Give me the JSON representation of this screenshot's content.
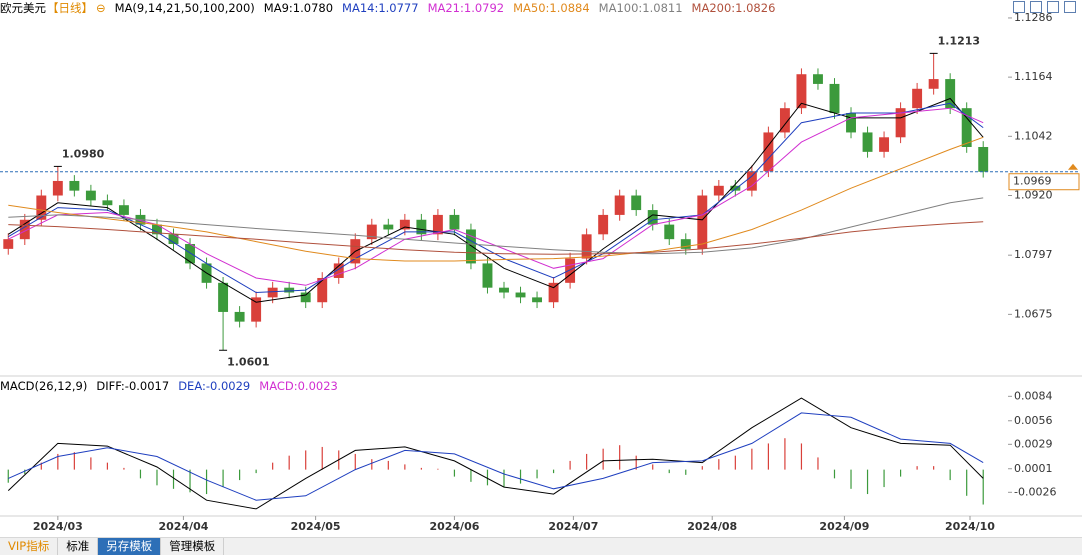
{
  "chart_data": [
    {
      "type": "candlestick",
      "title": "欧元美元",
      "period": "【日线】",
      "indicator": "MA(9,14,21,50,100,200)",
      "xlim": [
        -0.5,
        60.5
      ],
      "xticks": [
        {
          "value": 3,
          "label": "2024/03"
        },
        {
          "value": 10.6,
          "label": "2024/04"
        },
        {
          "value": 18.6,
          "label": "2024/05"
        },
        {
          "value": 27,
          "label": "2024/06"
        },
        {
          "value": 34.2,
          "label": "2024/07"
        },
        {
          "value": 42.6,
          "label": "2024/08"
        },
        {
          "value": 50.6,
          "label": "2024/09"
        },
        {
          "value": 58.2,
          "label": "2024/10"
        }
      ],
      "ylim": [
        1.055,
        1.1323
      ],
      "yticks": [
        1.1286,
        1.1164,
        {
          "value": 1.1042,
          "label": "1.1042"
        },
        {
          "value": 1.092,
          "label": "1.0920"
        },
        1.0797,
        1.0675
      ],
      "up_color": "#d9403a",
      "down_color": "#3c9a3c",
      "open": [
        1.081,
        1.083,
        1.087,
        1.092,
        1.095,
        1.093,
        1.091,
        1.09,
        1.088,
        1.086,
        1.084,
        1.082,
        1.078,
        1.074,
        1.068,
        1.066,
        1.071,
        1.073,
        1.072,
        1.07,
        1.075,
        1.078,
        1.083,
        1.086,
        1.085,
        1.087,
        1.084,
        1.088,
        1.085,
        1.078,
        1.073,
        1.072,
        1.071,
        1.07,
        1.074,
        1.079,
        1.084,
        1.088,
        1.092,
        1.089,
        1.086,
        1.083,
        1.081,
        1.092,
        1.094,
        1.093,
        1.097,
        1.105,
        1.11,
        1.117,
        1.115,
        1.109,
        1.105,
        1.101,
        1.104,
        1.11,
        1.114,
        1.116,
        1.11,
        1.102
      ],
      "high": [
        1.0842,
        1.0882,
        1.0932,
        1.098,
        1.0962,
        1.0942,
        1.0922,
        1.0912,
        1.0892,
        1.0872,
        1.0852,
        1.0832,
        1.0792,
        1.0752,
        1.0692,
        1.0722,
        1.0742,
        1.0742,
        1.0732,
        1.0762,
        1.0792,
        1.0842,
        1.0872,
        1.0872,
        1.0882,
        1.0882,
        1.0892,
        1.0892,
        1.0862,
        1.0792,
        1.0742,
        1.0732,
        1.0722,
        1.0752,
        1.0802,
        1.0852,
        1.0892,
        1.0932,
        1.0932,
        1.0902,
        1.0872,
        1.0842,
        1.0932,
        1.0952,
        1.0952,
        1.0982,
        1.1062,
        1.1112,
        1.1182,
        1.1182,
        1.1162,
        1.1102,
        1.1062,
        1.1052,
        1.1112,
        1.1152,
        1.1213,
        1.1172,
        1.1112,
        1.1032
      ],
      "low": [
        1.0798,
        1.0818,
        1.0858,
        1.0908,
        1.0918,
        1.0898,
        1.0888,
        1.0868,
        1.0848,
        1.0828,
        1.0808,
        1.0768,
        1.0728,
        1.0601,
        1.0648,
        1.0648,
        1.0698,
        1.0708,
        1.0688,
        1.0688,
        1.0738,
        1.0768,
        1.0818,
        1.0838,
        1.0838,
        1.0828,
        1.0828,
        1.0838,
        1.0768,
        1.0718,
        1.0708,
        1.0698,
        1.0688,
        1.0688,
        1.0728,
        1.0778,
        1.0828,
        1.0868,
        1.0878,
        1.0848,
        1.0818,
        1.0798,
        1.0798,
        1.0908,
        1.0918,
        1.0918,
        1.0958,
        1.1038,
        1.1088,
        1.1138,
        1.1078,
        1.1038,
        1.0998,
        1.0998,
        1.1028,
        1.1088,
        1.1128,
        1.1088,
        1.1008,
        1.0957
      ],
      "close": [
        1.083,
        1.087,
        1.092,
        1.095,
        1.093,
        1.091,
        1.09,
        1.088,
        1.086,
        1.084,
        1.082,
        1.078,
        1.074,
        1.068,
        1.066,
        1.071,
        1.073,
        1.072,
        1.07,
        1.075,
        1.078,
        1.083,
        1.086,
        1.085,
        1.087,
        1.084,
        1.088,
        1.085,
        1.078,
        1.073,
        1.072,
        1.071,
        1.07,
        1.074,
        1.079,
        1.084,
        1.088,
        1.092,
        1.089,
        1.086,
        1.083,
        1.081,
        1.092,
        1.094,
        1.093,
        1.097,
        1.105,
        1.11,
        1.117,
        1.115,
        1.109,
        1.105,
        1.101,
        1.104,
        1.11,
        1.114,
        1.116,
        1.11,
        1.102,
        1.0969
      ],
      "ma_x": [
        0,
        3,
        6,
        9,
        12,
        15,
        18,
        21,
        24,
        27,
        30,
        33,
        36,
        39,
        42,
        45,
        48,
        51,
        54,
        57,
        59
      ],
      "series": [
        {
          "name": "MA9:1.0780",
          "color": "#000000",
          "values": [
            1.084,
            1.0905,
            1.0895,
            1.083,
            1.076,
            1.07,
            1.0715,
            1.0805,
            1.0855,
            1.084,
            1.077,
            1.073,
            1.081,
            1.088,
            1.087,
            1.098,
            1.111,
            1.108,
            1.108,
            1.112,
            1.104
          ]
        },
        {
          "name": "MA14:1.0777",
          "color": "#1f3fbf",
          "values": [
            1.0835,
            1.0895,
            1.089,
            1.0845,
            1.078,
            1.072,
            1.0725,
            1.079,
            1.0845,
            1.0845,
            1.079,
            1.075,
            1.08,
            1.087,
            1.088,
            1.096,
            1.107,
            1.109,
            1.109,
            1.111,
            1.106
          ]
        },
        {
          "name": "MA21:1.0792",
          "color": "#d12fd1",
          "values": [
            1.083,
            1.088,
            1.0885,
            1.086,
            1.08,
            1.075,
            1.0735,
            1.077,
            1.083,
            1.085,
            1.081,
            1.077,
            1.079,
            1.086,
            1.088,
            1.094,
            1.103,
            1.108,
            1.109,
            1.11,
            1.107
          ]
        },
        {
          "name": "MA50:1.0884",
          "color": "#e08a1e",
          "values": [
            1.09,
            1.0885,
            1.0872,
            1.086,
            1.0845,
            1.0825,
            1.0805,
            1.079,
            1.0785,
            1.0785,
            1.0788,
            1.079,
            1.0795,
            1.0805,
            1.082,
            1.085,
            1.089,
            1.0935,
            1.0975,
            1.1015,
            1.104
          ]
        },
        {
          "name": "MA100:1.0811",
          "color": "#808080",
          "values": [
            1.0875,
            1.088,
            1.0875,
            1.0868,
            1.086,
            1.0852,
            1.0845,
            1.0838,
            1.083,
            1.0822,
            1.0815,
            1.0808,
            1.0803,
            1.08,
            1.0803,
            1.0812,
            1.083,
            1.0855,
            1.088,
            1.0905,
            1.0915
          ]
        },
        {
          "name": "MA200:1.0826",
          "color": "#b0503c",
          "values": [
            1.086,
            1.0856,
            1.085,
            1.0843,
            1.0836,
            1.083,
            1.0822,
            1.0815,
            1.0808,
            1.0803,
            1.08,
            1.0799,
            1.08,
            1.0803,
            1.081,
            1.082,
            1.0832,
            1.0845,
            1.0855,
            1.0862,
            1.0866
          ]
        }
      ],
      "annotations": [
        {
          "label": "1.0980",
          "value": 1.098,
          "at": 3,
          "color": "#d9403a"
        },
        {
          "label": "1.0601",
          "value": 1.0601,
          "at": 13,
          "color": "#3c9a3c"
        },
        {
          "label": "1.1213",
          "value": 1.1213,
          "at": 56,
          "color": "#d9403a"
        }
      ],
      "last_price": {
        "value": 1.0969,
        "label": "1.0969",
        "color": "#e08a1e"
      }
    },
    {
      "type": "macd",
      "title": "MACD(26,12,9)",
      "ylim": [
        -0.0052,
        0.0105
      ],
      "yticks": [
        0.0084,
        0.0056,
        0.0029,
        0.0001,
        -0.0026
      ],
      "x": [
        0,
        3,
        6,
        9,
        12,
        15,
        18,
        21,
        24,
        27,
        30,
        33,
        36,
        39,
        42,
        45,
        48,
        51,
        54,
        57,
        59
      ],
      "series": [
        {
          "name": "DIFF:-0.0017",
          "color": "#000000",
          "values": [
            -0.0024,
            0.003,
            0.0027,
            0.0003,
            -0.0035,
            -0.0045,
            -0.001,
            0.0022,
            0.0026,
            0.001,
            -0.002,
            -0.0028,
            0.001,
            0.0012,
            0.0008,
            0.0048,
            0.0082,
            0.0048,
            0.003,
            0.0028,
            -0.001
          ]
        },
        {
          "name": "DEA:-0.0029",
          "color": "#1f3fbf",
          "values": [
            -0.001,
            0.0015,
            0.0025,
            0.0015,
            -0.0012,
            -0.0035,
            -0.003,
            0.0,
            0.0022,
            0.0018,
            -0.0005,
            -0.0022,
            -0.001,
            0.0008,
            0.001,
            0.003,
            0.0065,
            0.006,
            0.0035,
            0.003,
            0.0008
          ]
        }
      ],
      "histogram": {
        "name": "MACD:0.0023",
        "color": "#d12fd1",
        "up_color": "#d9403a",
        "down_color": "#3c9a3c",
        "values": [
          -0.0015,
          -0.0005,
          0.0008,
          0.0018,
          0.002,
          0.0014,
          0.0008,
          0.0002,
          -0.001,
          -0.0018,
          -0.0022,
          -0.0026,
          -0.0028,
          -0.002,
          -0.0012,
          -0.0004,
          0.0008,
          0.0016,
          0.0022,
          0.0026,
          0.0022,
          0.0018,
          0.0012,
          0.001,
          0.0006,
          0.0002,
          0.0001,
          -0.0008,
          -0.0014,
          -0.0018,
          -0.002,
          -0.0016,
          -0.001,
          -0.0004,
          0.001,
          0.0018,
          0.0024,
          0.0028,
          0.0016,
          0.0006,
          -0.0004,
          -0.0006,
          0.0004,
          0.0012,
          0.0016,
          0.0024,
          0.003,
          0.0036,
          0.003,
          0.0014,
          -0.001,
          -0.0022,
          -0.0028,
          -0.002,
          -0.0008,
          0.0004,
          0.0004,
          -0.0012,
          -0.003,
          -0.004
        ]
      }
    }
  ],
  "toolbar": {
    "tabs": [
      "VIP指标",
      "标准",
      "另存模板",
      "管理模板"
    ]
  }
}
